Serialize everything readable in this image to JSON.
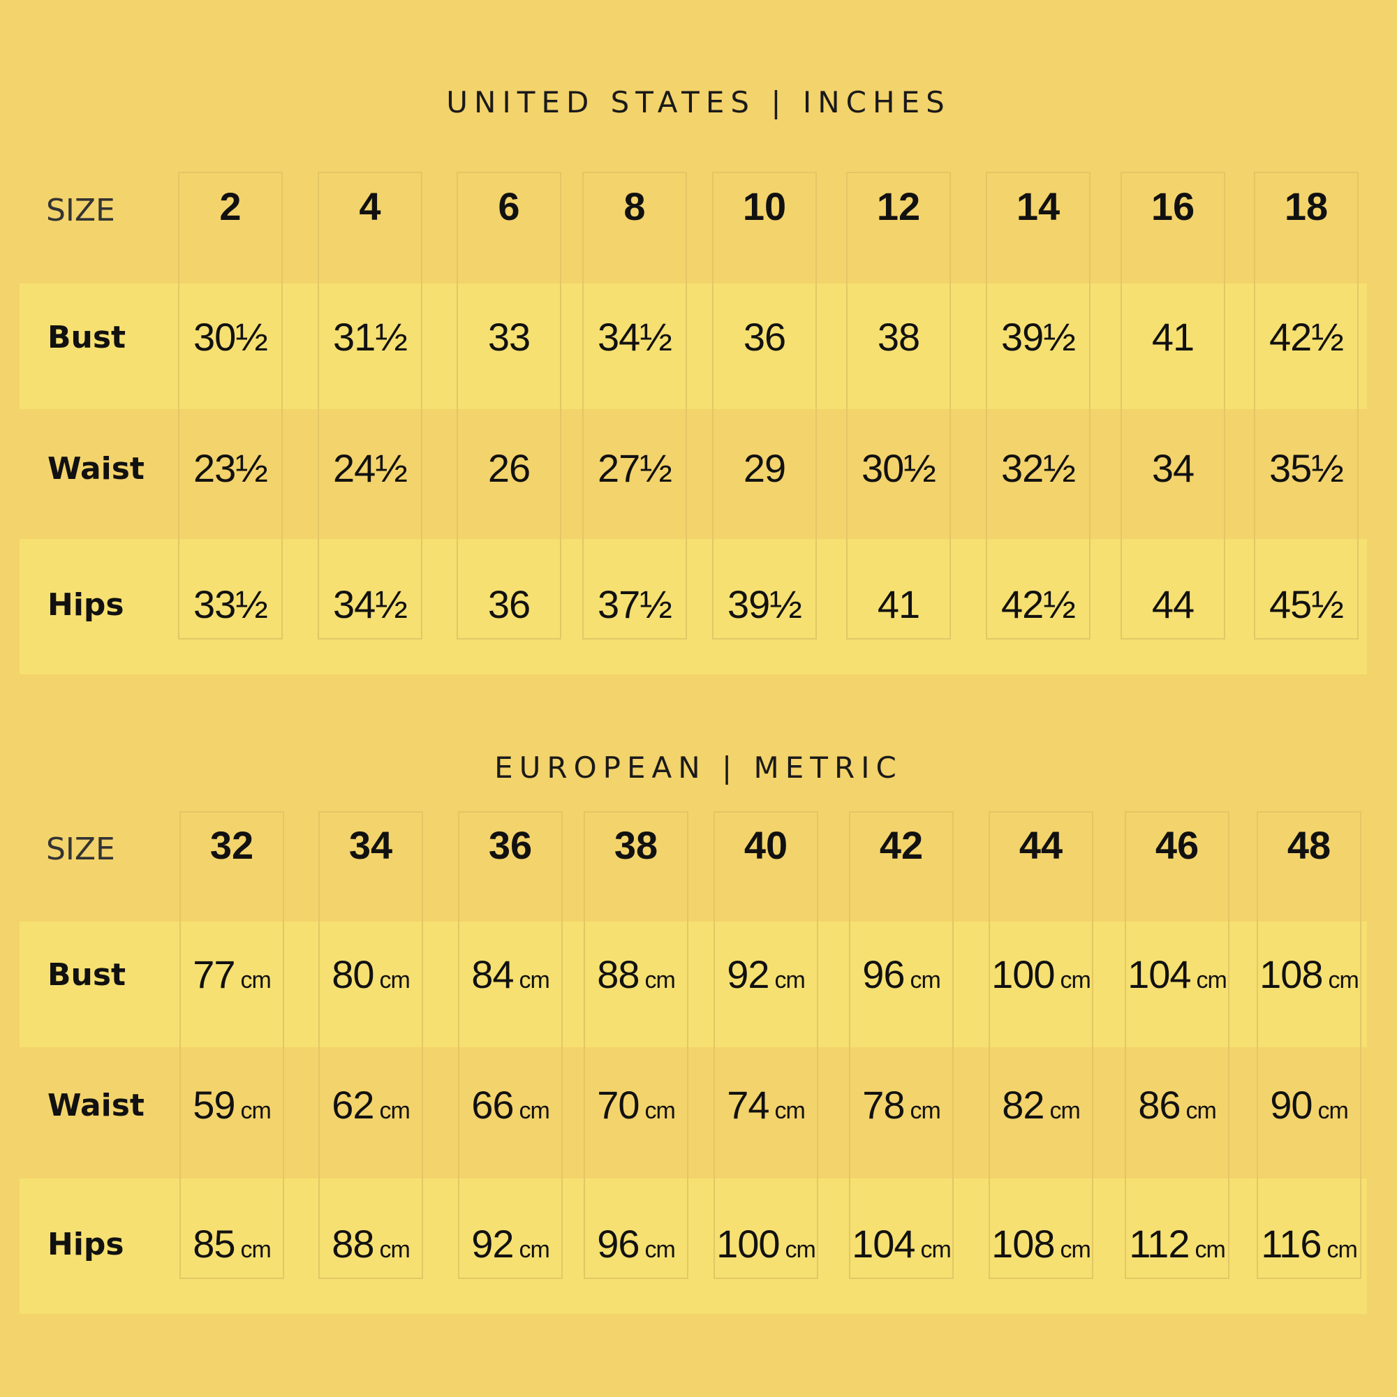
{
  "us": {
    "heading": "UNITED STATES  |  INCHES",
    "size_label": "SIZE",
    "sizes": [
      "2",
      "4",
      "6",
      "8",
      "10",
      "12",
      "14",
      "16",
      "18"
    ],
    "rows": [
      {
        "label": "Bust",
        "values": [
          "30½",
          "31½",
          "33",
          "34½",
          "36",
          "38",
          "39½",
          "41",
          "42½"
        ]
      },
      {
        "label": "Waist",
        "values": [
          "23½",
          "24½",
          "26",
          "27½",
          "29",
          "30½",
          "32½",
          "34",
          "35½"
        ]
      },
      {
        "label": "Hips",
        "values": [
          "33½",
          "34½",
          "36",
          "37½",
          "39½",
          "41",
          "42½",
          "44",
          "45½"
        ]
      }
    ]
  },
  "eu": {
    "heading": "EUROPEAN  |  METRIC",
    "size_label": "SIZE",
    "unit": "cm",
    "sizes": [
      "32",
      "34",
      "36",
      "38",
      "40",
      "42",
      "44",
      "46",
      "48"
    ],
    "rows": [
      {
        "label": "Bust",
        "values": [
          "77",
          "80",
          "84",
          "88",
          "92",
          "96",
          "100",
          "104",
          "108"
        ]
      },
      {
        "label": "Waist",
        "values": [
          "59",
          "62",
          "66",
          "70",
          "74",
          "78",
          "82",
          "86",
          "90"
        ]
      },
      {
        "label": "Hips",
        "values": [
          "85",
          "88",
          "92",
          "96",
          "100",
          "104",
          "108",
          "112",
          "116"
        ]
      }
    ]
  }
}
